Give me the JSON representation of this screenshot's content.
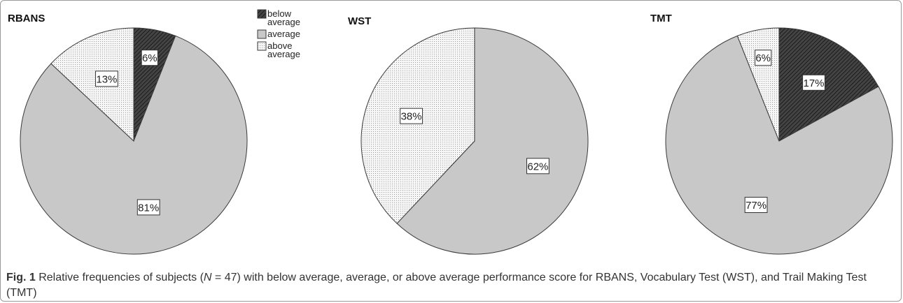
{
  "figure": {
    "label": "Fig. 1",
    "caption_part1": " Relative frequencies of subjects (",
    "caption_n": "N",
    "caption_part2": " = 47) with below average, average, or above average performance score for RBANS, Vocabulary Test (WST), and Trail Making Test (TMT)"
  },
  "legend": {
    "placement": "top-right of first chart",
    "items": [
      {
        "key": "below",
        "label_lines": [
          "below",
          "average"
        ]
      },
      {
        "key": "average",
        "label_lines": [
          "average"
        ]
      },
      {
        "key": "above",
        "label_lines": [
          "above",
          "average"
        ]
      }
    ]
  },
  "colors": {
    "below": "#333333",
    "average": "#c8c8c8",
    "above": "#f4f4f4",
    "outline": "#3a3a3a"
  },
  "chart_data": [
    {
      "type": "pie",
      "title": "RBANS",
      "slices": [
        {
          "key": "below",
          "value": 6,
          "label": "6%"
        },
        {
          "key": "average",
          "value": 81,
          "label": "81%"
        },
        {
          "key": "above",
          "value": 13,
          "label": "13%"
        }
      ]
    },
    {
      "type": "pie",
      "title": "WST",
      "slices": [
        {
          "key": "average",
          "value": 62,
          "label": "62%"
        },
        {
          "key": "above",
          "value": 38,
          "label": "38%"
        }
      ]
    },
    {
      "type": "pie",
      "title": "TMT",
      "slices": [
        {
          "key": "below",
          "value": 17,
          "label": "17%"
        },
        {
          "key": "average",
          "value": 77,
          "label": "77%"
        },
        {
          "key": "above",
          "value": 6,
          "label": "6%"
        }
      ]
    }
  ]
}
